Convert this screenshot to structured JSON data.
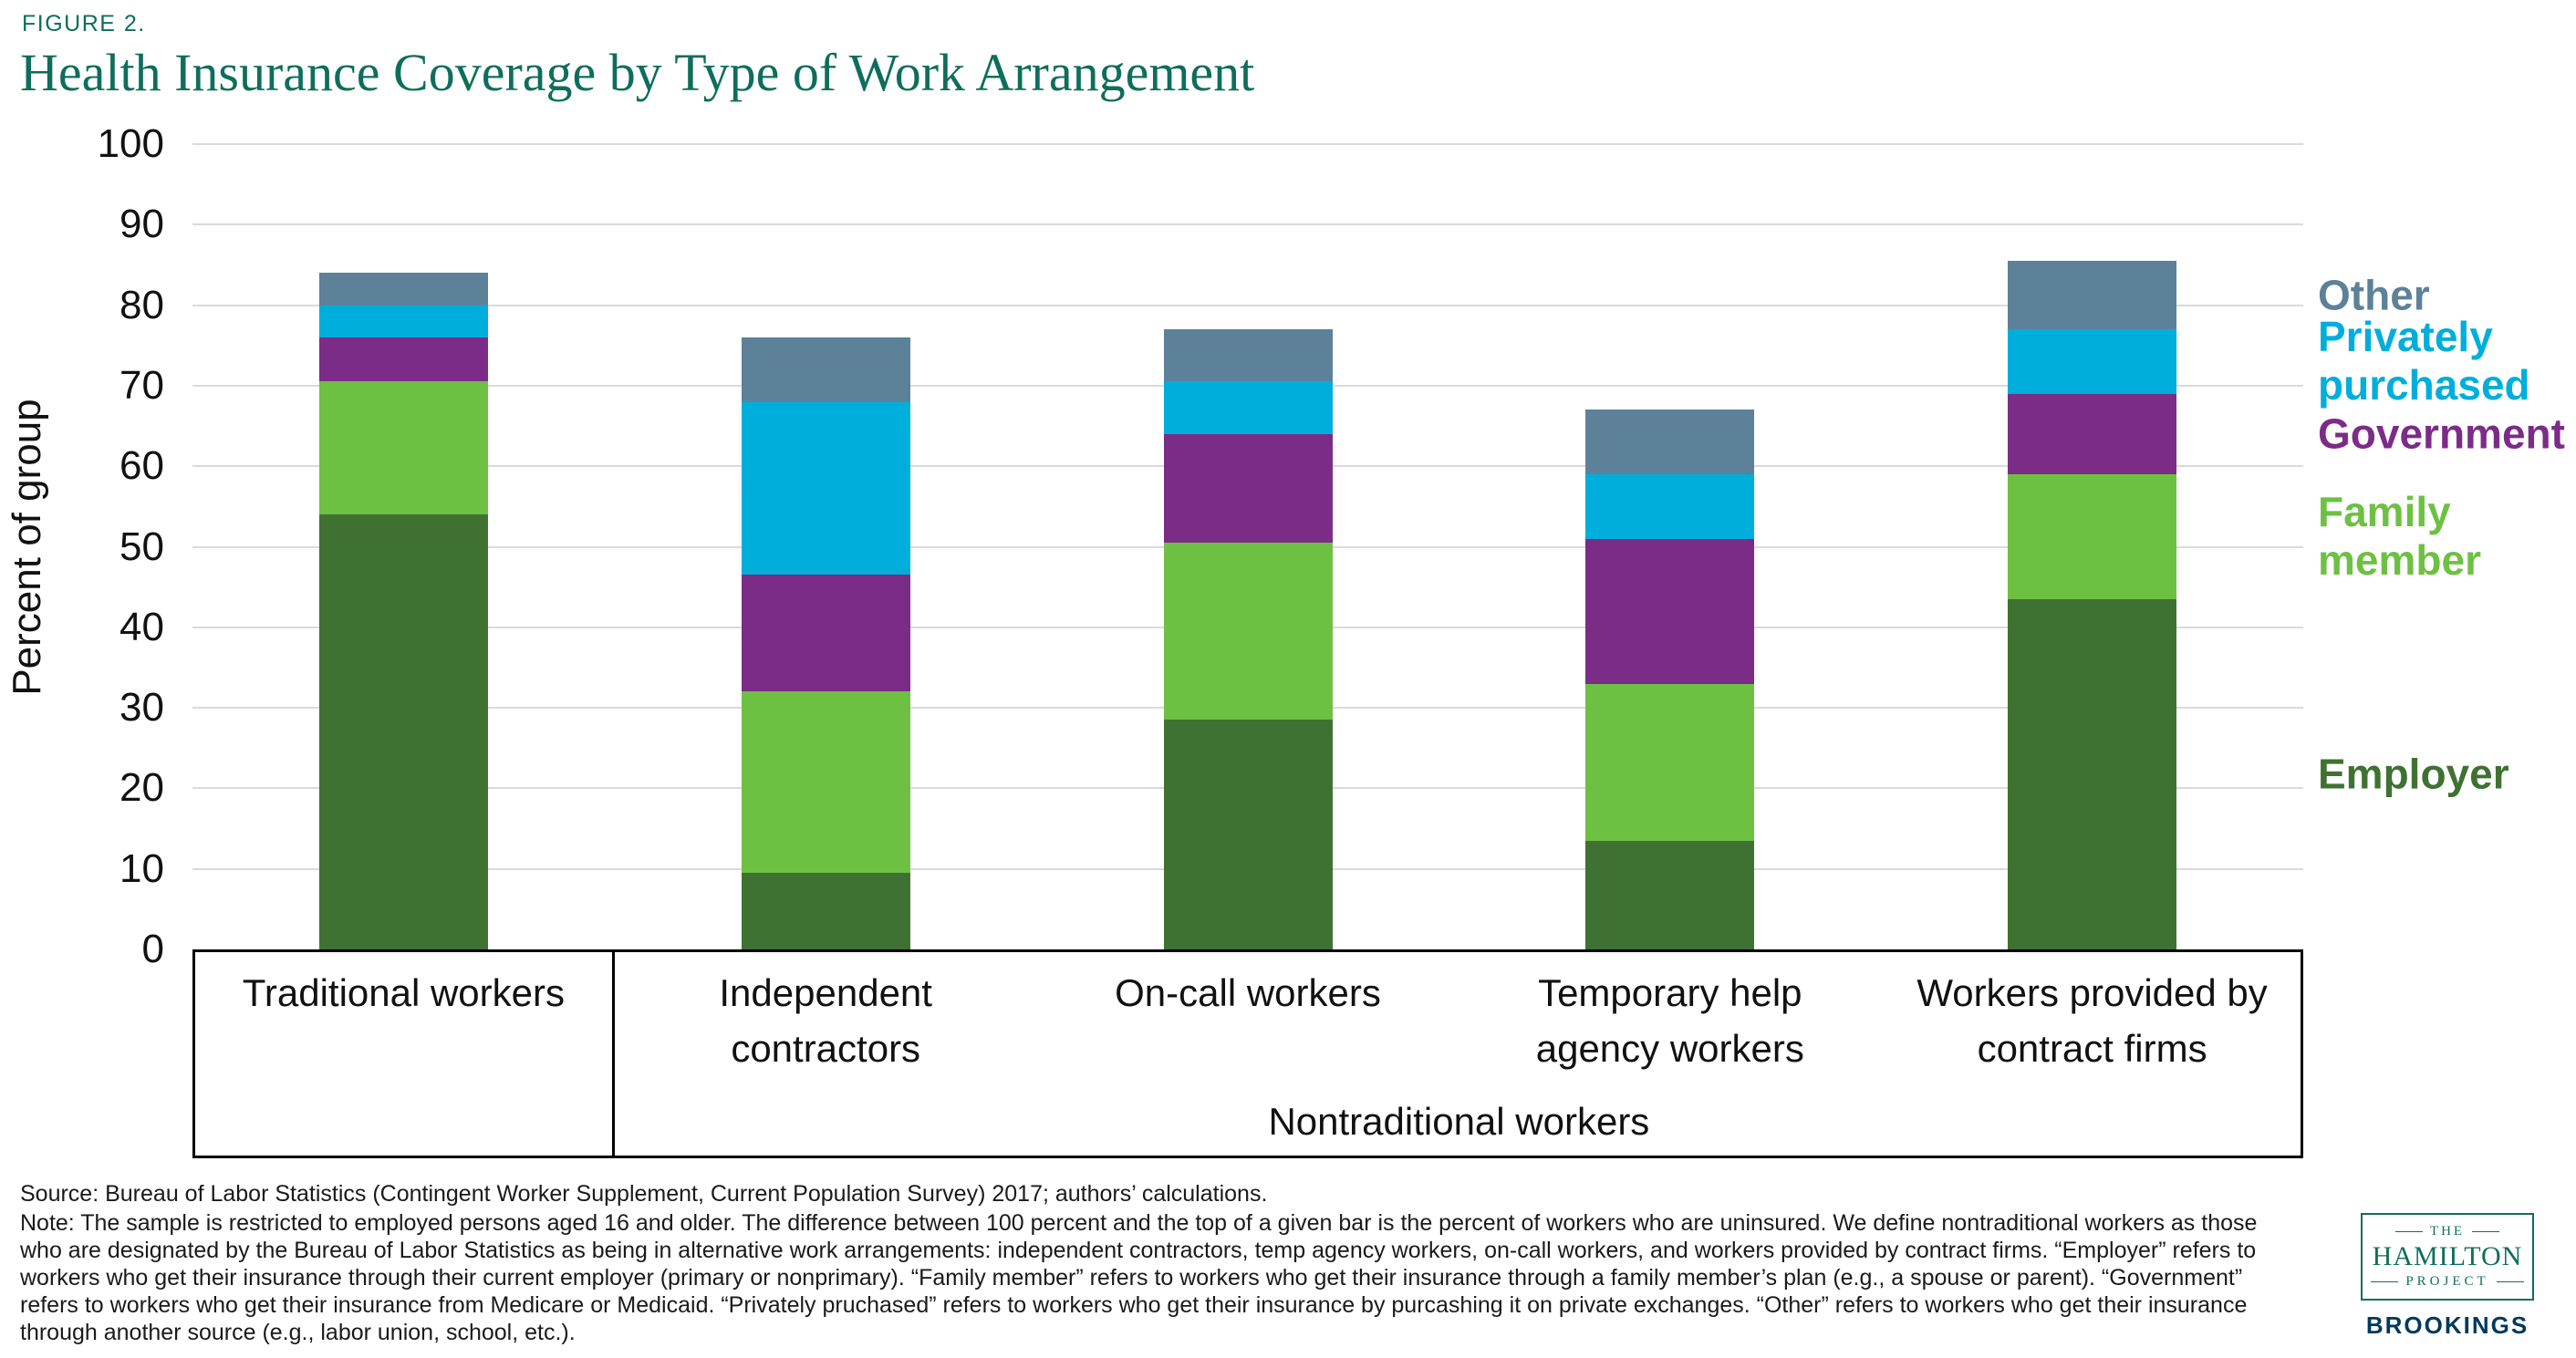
{
  "figure": {
    "label": "FIGURE 2."
  },
  "chart_data": {
    "type": "bar",
    "stacked": true,
    "title": "Health Insurance Coverage by Type of Work Arrangement",
    "xlabel": "",
    "ylabel": "Percent of group",
    "ylim": [
      0,
      100
    ],
    "ytick_step": 10,
    "grid": "horizontal",
    "legend_position": "right",
    "categories": [
      "Traditional workers",
      "Independent\ncontractors",
      "On-call workers",
      "Temporary help\nagency workers",
      "Workers provided by\ncontract firms"
    ],
    "group_label": "Nontraditional workers",
    "group_start_index": 1,
    "series": [
      {
        "name": "Employer",
        "color": "#3F7232",
        "values": [
          54.0,
          9.5,
          28.5,
          13.5,
          43.5
        ]
      },
      {
        "name": "Family member",
        "color": "#6EC043",
        "values": [
          16.5,
          22.5,
          22.0,
          19.5,
          15.5
        ]
      },
      {
        "name": "Government",
        "color": "#7B2C87",
        "values": [
          5.5,
          14.5,
          13.5,
          18.0,
          10.0
        ]
      },
      {
        "name": "Privately purchased",
        "color": "#00AEDB",
        "values": [
          4.0,
          21.5,
          6.5,
          8.0,
          8.0
        ]
      },
      {
        "name": "Other",
        "color": "#5C8199",
        "values": [
          4.0,
          8.0,
          6.5,
          8.0,
          8.5
        ]
      }
    ],
    "bar_totals": [
      84.0,
      76.0,
      77.0,
      67.0,
      85.5
    ]
  },
  "notes": {
    "source": "Source: Bureau of Labor Statistics (Contingent Worker Supplement, Current Population Survey) 2017; authors’ calculations.",
    "note": "Note: The sample is restricted to employed persons aged 16 and older. The difference between 100 percent and the top of a given bar is the percent of workers who are uninsured. We define nontraditional workers as those who are designated by the Bureau of Labor Statistics as being in alternative work arrangements: independent contractors, temp agency workers, on-call workers, and workers provided by contract firms. “Employer” refers to workers who get their insurance through their current employer (primary or nonprimary). “Family member” refers to workers who get their insurance through a family member’s plan (e.g., a spouse or parent). “Government” refers to workers who get their insurance from Medicare or Medicaid. “Privately pruchased” refers to workers who get their insurance by purcashing it on private exchanges. “Other” refers to workers who get their insurance through another source (e.g., labor union, school, etc.)."
  },
  "logo": {
    "the": "THE",
    "hamilton": "HAMILTON",
    "project": "PROJECT",
    "brookings": "BROOKINGS"
  },
  "colors": {
    "accent_teal": "#0E6E5B",
    "brookings_navy": "#00395B",
    "gridline": "#DADADA"
  }
}
